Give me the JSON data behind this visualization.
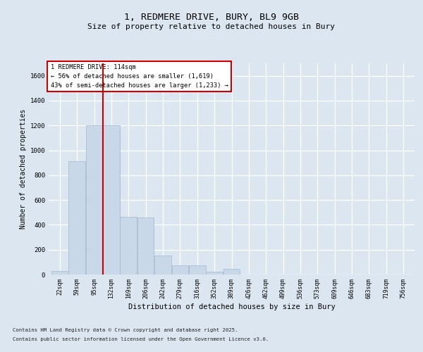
{
  "title_line1": "1, REDMERE DRIVE, BURY, BL9 9GB",
  "title_line2": "Size of property relative to detached houses in Bury",
  "xlabel": "Distribution of detached houses by size in Bury",
  "ylabel": "Number of detached properties",
  "footnote1": "Contains HM Land Registry data © Crown copyright and database right 2025.",
  "footnote2": "Contains public sector information licensed under the Open Government Licence v3.0.",
  "annotation_line1": "1 REDMERE DRIVE: 114sqm",
  "annotation_line2": "← 56% of detached houses are smaller (1,619)",
  "annotation_line3": "43% of semi-detached houses are larger (1,233) →",
  "bar_color": "#c8d8e8",
  "bar_edge_color": "#a0b8cc",
  "redline_color": "#cc0000",
  "bg_color": "#dce6f0",
  "ylim": [
    0,
    1700
  ],
  "yticks": [
    0,
    200,
    400,
    600,
    800,
    1000,
    1200,
    1400,
    1600
  ],
  "categories": [
    "22sqm",
    "59sqm",
    "95sqm",
    "132sqm",
    "169sqm",
    "206sqm",
    "242sqm",
    "279sqm",
    "316sqm",
    "352sqm",
    "389sqm",
    "426sqm",
    "462sqm",
    "499sqm",
    "536sqm",
    "573sqm",
    "609sqm",
    "646sqm",
    "683sqm",
    "719sqm",
    "756sqm"
  ],
  "values": [
    28,
    910,
    1200,
    1200,
    465,
    460,
    155,
    75,
    72,
    22,
    48,
    0,
    0,
    0,
    0,
    0,
    0,
    0,
    0,
    0,
    0
  ],
  "redline_index": 2.51
}
